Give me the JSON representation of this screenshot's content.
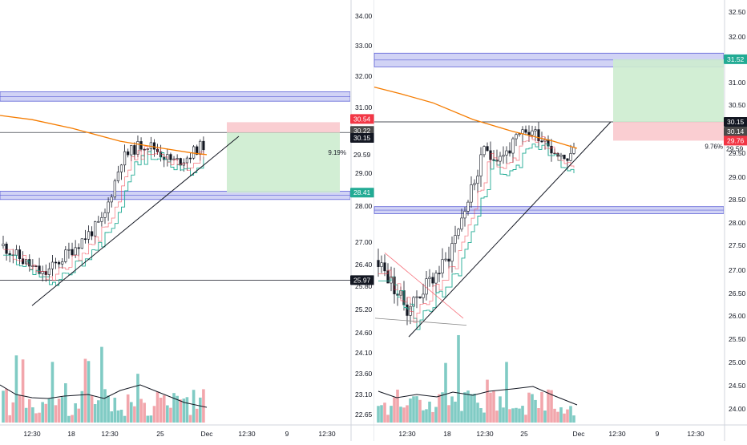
{
  "chart_data": [
    {
      "type": "candlestick",
      "panel": "left",
      "y_axis_ticks": [
        "34.00",
        "33.00",
        "32.00",
        "31.00",
        "30.00",
        "29.00",
        "28.00",
        "27.00",
        "26.40",
        "25.80",
        "25.20",
        "24.60",
        "24.10",
        "23.60",
        "23.10",
        "22.65"
      ],
      "x_axis_ticks": [
        "12:30",
        "18",
        "12:30",
        "25",
        "Dec",
        "12:30",
        "9",
        "12:30"
      ],
      "price_labels": [
        {
          "text": "30.54",
          "color": "#f23645"
        },
        {
          "text": "30.22",
          "color": "#4a4a4a"
        },
        {
          "text": "30.15",
          "color": "#131722"
        },
        {
          "text": "28.41",
          "color": "#22ab94"
        },
        {
          "text": "25.97",
          "color": "#131722"
        }
      ],
      "percent_label": "9.19%",
      "percent_label_value": "29.59",
      "resistance_zone": [
        31.2,
        31.5
      ],
      "support_zone": [
        28.2,
        28.45
      ],
      "horizontal_lines": [
        30.22,
        25.97
      ],
      "long_position": {
        "entry": 30.22,
        "stop": 30.54,
        "target": 28.41
      },
      "ma_level_last": 29.6
    },
    {
      "type": "candlestick",
      "panel": "right",
      "y_axis_ticks": [
        "32.50",
        "32.00",
        "31.50",
        "31.00",
        "30.50",
        "30.00",
        "29.50",
        "29.00",
        "28.50",
        "28.00",
        "27.50",
        "27.00",
        "26.50",
        "26.00",
        "25.50",
        "25.00",
        "24.50",
        "24.00"
      ],
      "x_axis_ticks": [
        "12:30",
        "18",
        "12:30",
        "25",
        "Dec",
        "12:30",
        "9",
        "12:30"
      ],
      "price_labels": [
        {
          "text": "31.52",
          "color": "#22ab94"
        },
        {
          "text": "30.15",
          "color": "#131722"
        },
        {
          "text": "30.14",
          "color": "#4a4a4a"
        },
        {
          "text": "29.76",
          "color": "#f23645"
        }
      ],
      "percent_label": "9.76%",
      "percent_label_value": "29.59",
      "resistance_zone": [
        31.35,
        31.65
      ],
      "support_zone": [
        28.2,
        28.35
      ],
      "horizontal_lines": [
        30.15
      ],
      "long_position": {
        "entry": 30.15,
        "stop": 29.76,
        "target": 31.52
      },
      "ma_level_last": 29.6
    }
  ],
  "colors": {
    "up": "#22ab94",
    "down": "#f23645",
    "candle": "#131722",
    "ma_orange": "#f57c00",
    "zone_fill": "#c5c8f2",
    "zone_line": "#5b5fd6",
    "target_fill": "#cdeccf",
    "stop_fill": "#f9c9cd",
    "vol_up": "#80cbc4",
    "vol_down": "#f2a6ac"
  }
}
